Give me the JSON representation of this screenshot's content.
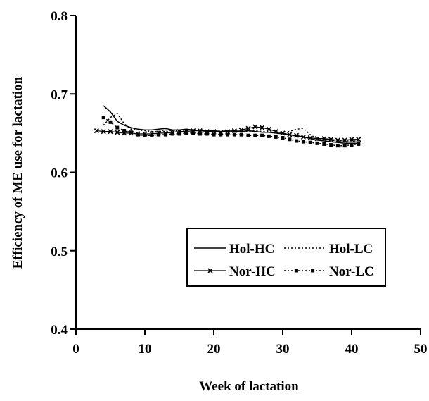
{
  "chart_data": {
    "type": "line",
    "title": "",
    "xlabel": "Week of lactation",
    "ylabel": "Efficiency of ME use for lactation",
    "xlim": [
      0,
      50
    ],
    "ylim": [
      0.4,
      0.8
    ],
    "x_ticks": [
      "0",
      "10",
      "20",
      "30",
      "40",
      "50"
    ],
    "y_ticks": [
      "0.4",
      "0.5",
      "0.6",
      "0.7",
      "0.8"
    ],
    "grid": false,
    "legend_position": "center-right",
    "x": [
      3,
      4,
      5,
      6,
      7,
      8,
      9,
      10,
      11,
      12,
      13,
      14,
      15,
      16,
      17,
      18,
      19,
      20,
      21,
      22,
      23,
      24,
      25,
      26,
      27,
      28,
      29,
      30,
      31,
      32,
      33,
      34,
      35,
      36,
      37,
      38,
      39,
      40,
      41
    ],
    "series": [
      {
        "name": "Hol-HC",
        "style": "solid",
        "values": [
          null,
          0.685,
          0.677,
          0.665,
          0.66,
          0.657,
          0.655,
          0.654,
          0.654,
          0.655,
          0.656,
          0.654,
          0.654,
          0.655,
          0.654,
          0.653,
          0.653,
          0.653,
          0.652,
          0.653,
          0.652,
          0.652,
          0.653,
          0.652,
          0.651,
          0.651,
          0.65,
          0.649,
          0.648,
          0.646,
          0.645,
          0.643,
          0.641,
          0.64,
          0.639,
          0.638,
          0.637,
          0.637,
          0.637
        ]
      },
      {
        "name": "Hol-LC",
        "style": "dotted",
        "values": [
          null,
          0.66,
          0.67,
          0.675,
          0.662,
          0.655,
          0.654,
          0.653,
          0.652,
          0.652,
          0.654,
          0.653,
          0.653,
          0.654,
          0.654,
          0.653,
          0.653,
          0.652,
          0.652,
          0.652,
          0.653,
          0.652,
          0.652,
          0.653,
          0.652,
          0.652,
          0.651,
          0.651,
          0.652,
          0.655,
          0.656,
          0.648,
          0.643,
          0.642,
          0.641,
          0.64,
          0.64,
          0.64,
          0.64
        ]
      },
      {
        "name": "Nor-HC",
        "style": "solid-x",
        "values": [
          0.653,
          0.652,
          0.652,
          0.651,
          0.65,
          0.65,
          0.649,
          0.649,
          0.649,
          0.65,
          0.65,
          0.651,
          0.652,
          0.652,
          0.653,
          0.653,
          0.652,
          0.652,
          0.651,
          0.652,
          0.653,
          0.654,
          0.656,
          0.658,
          0.657,
          0.655,
          0.652,
          0.65,
          0.648,
          0.647,
          0.645,
          0.644,
          0.643,
          0.643,
          0.642,
          0.641,
          0.641,
          0.642,
          0.642
        ]
      },
      {
        "name": "Nor-LC",
        "style": "dotted-dots",
        "values": [
          null,
          0.67,
          0.664,
          0.657,
          0.653,
          0.651,
          0.648,
          0.647,
          0.647,
          0.648,
          0.648,
          0.649,
          0.649,
          0.65,
          0.65,
          0.649,
          0.649,
          0.648,
          0.648,
          0.648,
          0.648,
          0.648,
          0.647,
          0.647,
          0.647,
          0.646,
          0.645,
          0.644,
          0.642,
          0.64,
          0.639,
          0.638,
          0.637,
          0.636,
          0.635,
          0.634,
          0.634,
          0.635,
          0.636
        ]
      }
    ]
  }
}
